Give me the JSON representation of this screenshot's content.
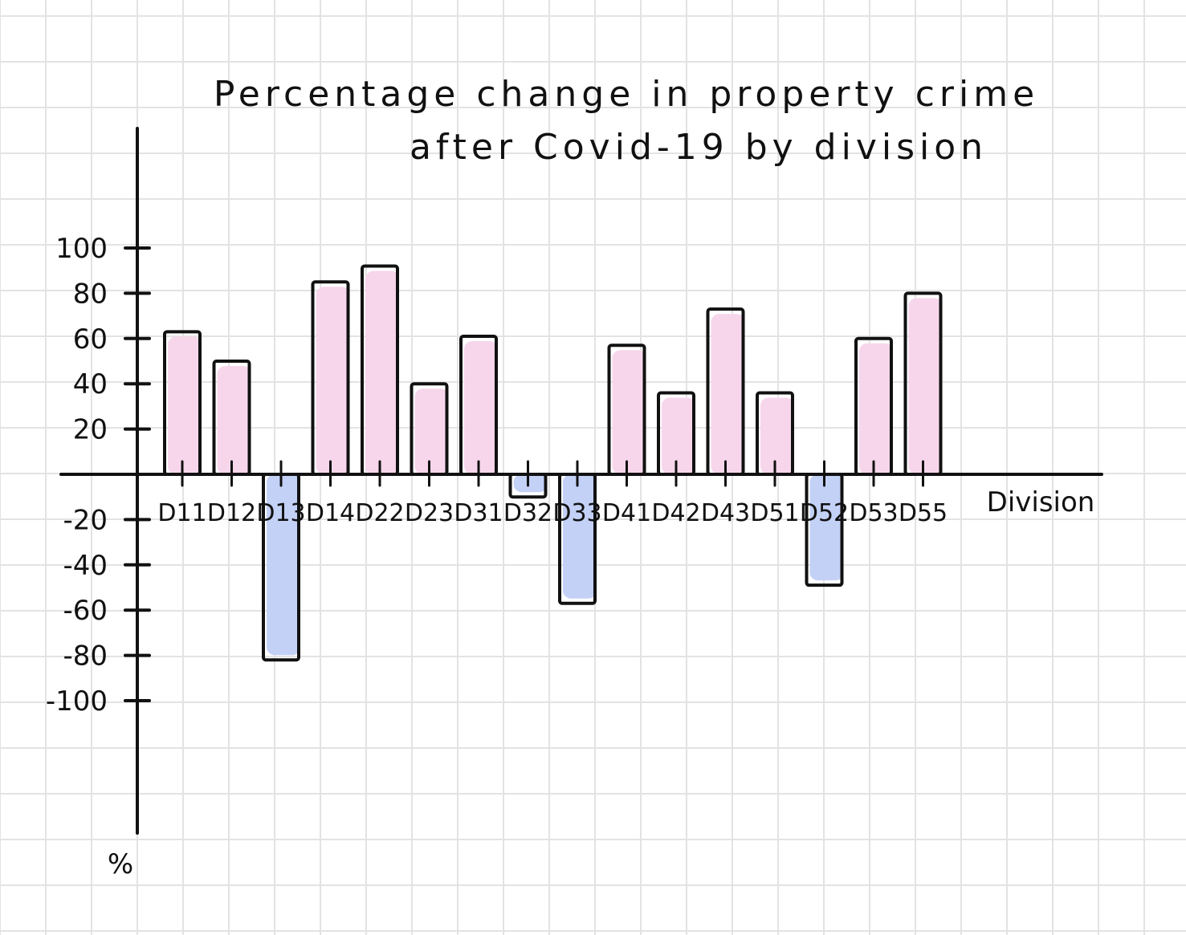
{
  "chart_data": {
    "type": "bar",
    "title_line1": "Percentage change in property crime",
    "title_line2": "after Covid-19 by division",
    "xlabel": "Division",
    "ylabel": "%",
    "categories": [
      "D11",
      "D12",
      "D13",
      "D14",
      "D22",
      "D23",
      "D31",
      "D32",
      "D33",
      "D41",
      "D42",
      "D43",
      "D51",
      "D52",
      "D53",
      "D55"
    ],
    "values": [
      63,
      50,
      -82,
      85,
      92,
      40,
      61,
      -10,
      -57,
      57,
      36,
      73,
      36,
      -49,
      60,
      80
    ],
    "y_ticks": [
      "100",
      "80",
      "60",
      "40",
      "20",
      "-20",
      "-40",
      "-60",
      "-80",
      "-100"
    ],
    "y_tick_values": [
      100,
      80,
      60,
      40,
      20,
      -20,
      -40,
      -60,
      -80,
      -100
    ],
    "ylim": [
      -100,
      100
    ],
    "grid": true,
    "colors": {
      "positive": "#f7d6ec",
      "negative": "#c3d1f7",
      "outline": "#111111",
      "grid": "#e3e3e3"
    }
  }
}
